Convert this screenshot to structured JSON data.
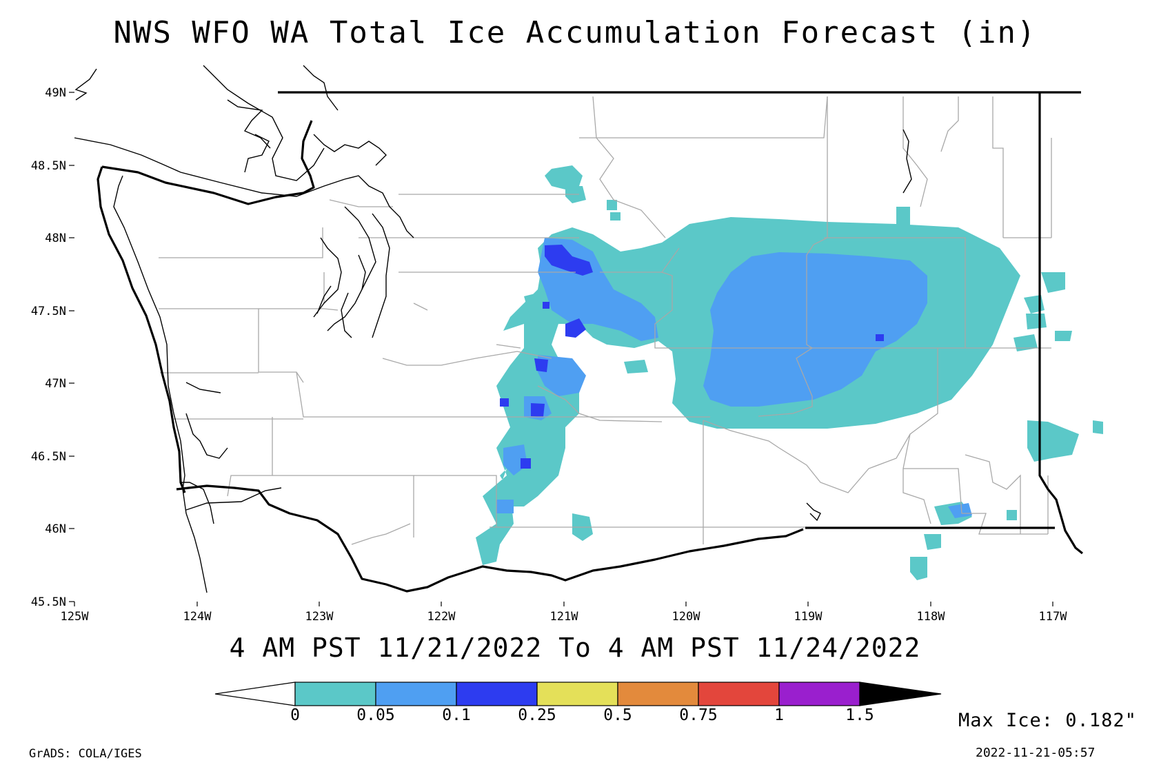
{
  "title": "NWS WFO WA Total Ice Accumulation Forecast (in)",
  "valid_period": "4 AM PST 11/21/2022 To 4 AM PST 11/24/2022",
  "max_ice": "Max Ice: 0.182\"",
  "credit": "GrADS: COLA/IGES",
  "timestamp": "2022-11-21-05:57",
  "map": {
    "lat_ticks": [
      "49N",
      "48.5N",
      "48N",
      "47.5N",
      "47N",
      "46.5N",
      "46N",
      "45.5N"
    ],
    "lon_ticks": [
      "125W",
      "124W",
      "123W",
      "122W",
      "121W",
      "120W",
      "119W",
      "118W",
      "117W"
    ]
  },
  "legend": {
    "labels": [
      "0",
      "0.05",
      "0.1",
      "0.25",
      "0.5",
      "0.75",
      "1",
      "1.5"
    ],
    "colors": [
      "#5bc8c8",
      "#4f9ff2",
      "#2d3cf0",
      "#e4e059",
      "#e38a3c",
      "#e3463c",
      "#9a1fce"
    ],
    "under_color": "#ffffff",
    "over_color": "#000000"
  },
  "colors": {
    "ice_light": "#5bc8c8",
    "ice_medium": "#4f9ff2",
    "ice_heavy": "#2d3cf0"
  }
}
